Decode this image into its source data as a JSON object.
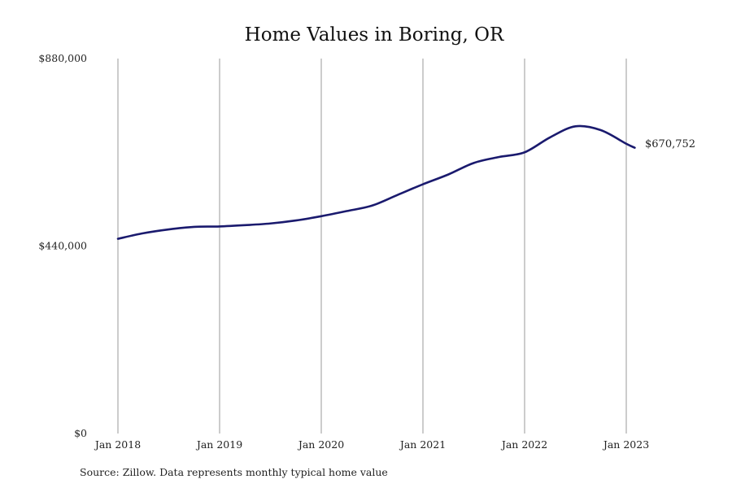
{
  "chart_data": {
    "type": "line",
    "title": "Home Values in Boring, OR",
    "source": "Source: Zillow. Data represents monthly typical home value",
    "y_ticks": [
      {
        "value": 880000,
        "label": "$880,000"
      },
      {
        "value": 440000,
        "label": "$440,000"
      },
      {
        "value": 0,
        "label": "$0"
      }
    ],
    "x_ticks": [
      {
        "value": "2018-01",
        "label": "Jan 2018"
      },
      {
        "value": "2019-01",
        "label": "Jan 2019"
      },
      {
        "value": "2020-01",
        "label": "Jan 2020"
      },
      {
        "value": "2021-01",
        "label": "Jan 2021"
      },
      {
        "value": "2022-01",
        "label": "Jan 2022"
      },
      {
        "value": "2023-01",
        "label": "Jan 2023"
      }
    ],
    "ylim": [
      0,
      880000
    ],
    "xlim": [
      "2018-01",
      "2023-01"
    ],
    "grid": "vertical",
    "line_color": "#1a1a6e",
    "series": [
      {
        "x": [
          "2018-01",
          "2018-04",
          "2018-07",
          "2018-10",
          "2019-01",
          "2019-04",
          "2019-07",
          "2019-10",
          "2020-01",
          "2020-04",
          "2020-07",
          "2020-10",
          "2021-01",
          "2021-04",
          "2021-07",
          "2021-10",
          "2022-01",
          "2022-04",
          "2022-07",
          "2022-10",
          "2023-01",
          "2023-02"
        ],
        "values": [
          457000,
          470000,
          479000,
          485000,
          486000,
          489000,
          493000,
          500000,
          510000,
          522000,
          535000,
          560000,
          585000,
          608000,
          635000,
          649000,
          660000,
          695000,
          721000,
          712000,
          680000,
          670752
        ]
      }
    ],
    "end_label": "$670,752"
  }
}
